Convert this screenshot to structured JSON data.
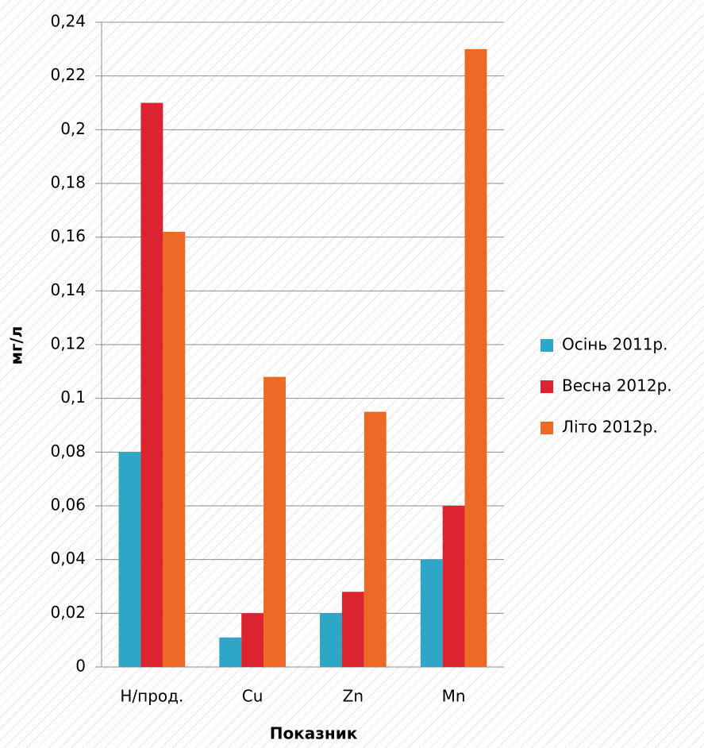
{
  "chart_data": {
    "type": "bar",
    "xlabel": "Показник",
    "ylabel": "мг/л",
    "categories": [
      "Н/прод.",
      "Cu",
      "Zn",
      "Mn"
    ],
    "series": [
      {
        "name": "Осінь 2011р.",
        "color": "#2ea6c5",
        "values": [
          0.08,
          0.011,
          0.02,
          0.04
        ]
      },
      {
        "name": "Весна 2012р.",
        "color": "#dc2330",
        "values": [
          0.21,
          0.02,
          0.028,
          0.06
        ]
      },
      {
        "name": "Літо 2012р.",
        "color": "#ec6a25",
        "values": [
          0.162,
          0.108,
          0.095,
          0.23
        ]
      }
    ],
    "ylim": [
      0,
      0.24
    ],
    "yticks": [
      0,
      {
        "value": 0.02,
        "label": "0,02"
      },
      {
        "value": 0.04,
        "label": "0,04"
      },
      {
        "value": 0.06,
        "label": "0,06"
      },
      {
        "value": 0.08,
        "label": "0,08"
      },
      {
        "value": 0.1,
        "label": "0,1"
      },
      {
        "value": 0.12,
        "label": "0,12"
      },
      {
        "value": 0.14,
        "label": "0,14"
      },
      {
        "value": 0.16,
        "label": "0,16"
      },
      {
        "value": 0.18,
        "label": "0,18"
      },
      {
        "value": 0.2,
        "label": "0,2"
      },
      {
        "value": 0.22,
        "label": "0,22"
      },
      {
        "value": 0.24,
        "label": "0,24"
      }
    ],
    "grid": true,
    "legend": "right"
  }
}
